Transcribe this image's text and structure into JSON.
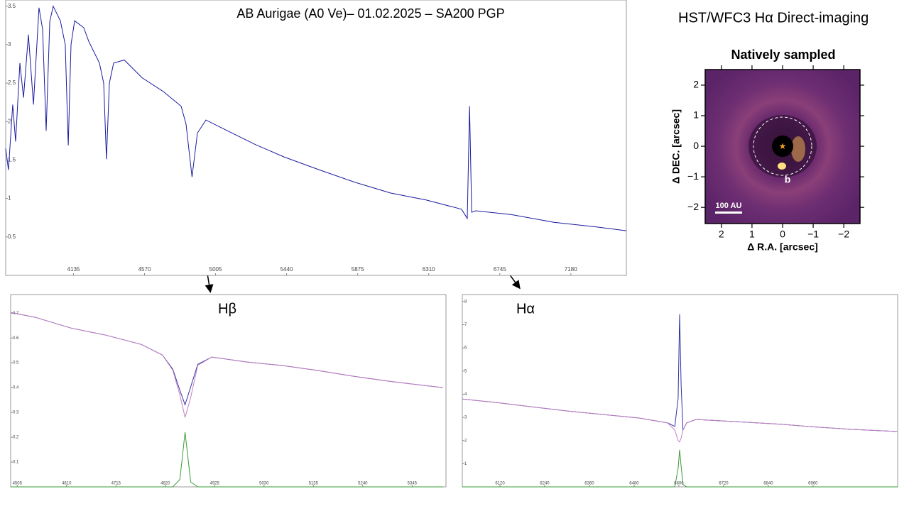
{
  "heading": "HST/WFC3 Hα Direct-imaging",
  "chart_data": [
    {
      "type": "line",
      "title": "AB Aurigae (A0 Ve)– 01.02.2025 – SA200 PGP",
      "x": [
        3720,
        3737,
        3763,
        3781,
        3807,
        3829,
        3859,
        3890,
        3924,
        3946,
        3968,
        3990,
        4011,
        4055,
        4085,
        4103,
        4120,
        4142,
        4198,
        4229,
        4294,
        4320,
        4337,
        4355,
        4381,
        4446,
        4555,
        4685,
        4794,
        4824,
        4861,
        4894,
        4946,
        5077,
        5250,
        5424,
        5642,
        5859,
        6077,
        6294,
        6511,
        6546,
        6560,
        6573,
        6598,
        6816,
        7077,
        7337,
        7520
      ],
      "series": [
        {
          "color": "#1a1aa0",
          "values": [
            1.65,
            1.37,
            2.22,
            1.74,
            2.76,
            2.31,
            3.13,
            2.22,
            3.48,
            3.2,
            1.88,
            3.3,
            3.5,
            3.31,
            3.0,
            1.69,
            3.0,
            3.31,
            3.22,
            3.04,
            2.76,
            2.5,
            1.51,
            2.5,
            2.76,
            2.8,
            2.57,
            2.39,
            2.2,
            1.97,
            1.28,
            1.85,
            2.02,
            1.88,
            1.7,
            1.54,
            1.37,
            1.21,
            1.07,
            0.98,
            0.86,
            0.74,
            2.2,
            0.82,
            0.84,
            0.79,
            0.69,
            0.63,
            0.58
          ]
        }
      ],
      "xlim": [
        3720,
        7520
      ],
      "ylim": [
        0,
        3.58
      ],
      "xticks": [
        4135,
        4570,
        5005,
        5440,
        5875,
        6310,
        6745,
        7180
      ],
      "yticks": [
        0.5,
        1,
        1.5,
        2,
        2.5,
        3,
        3.5
      ]
    },
    {
      "type": "line",
      "title": "Hβ",
      "x": [
        4491,
        4544,
        4619,
        4694,
        4769,
        4814,
        4836,
        4851,
        4862,
        4874,
        4889,
        4919,
        4994,
        5069,
        5144,
        5219,
        5294,
        5369,
        5411
      ],
      "series": [
        {
          "color": "#3030a0",
          "values": [
            0.703,
            0.683,
            0.64,
            0.611,
            0.574,
            0.531,
            0.474,
            0.389,
            0.331,
            0.403,
            0.494,
            0.523,
            0.503,
            0.489,
            0.469,
            0.446,
            0.426,
            0.409,
            0.4
          ]
        },
        {
          "color": "#c080c0",
          "values": [
            0.703,
            0.683,
            0.64,
            0.611,
            0.574,
            0.531,
            0.47,
            0.37,
            0.28,
            0.36,
            0.49,
            0.523,
            0.503,
            0.489,
            0.469,
            0.446,
            0.426,
            0.409,
            0.4
          ]
        },
        {
          "color": "#3a9a3a",
          "values": [
            0,
            0,
            0,
            0,
            0,
            0,
            0,
            0.03,
            0.22,
            0.02,
            0,
            0,
            0,
            0,
            0,
            0,
            0,
            0,
            0
          ]
        }
      ],
      "xlim": [
        4491,
        5417
      ],
      "ylim": [
        0,
        0.775
      ],
      "xticks": [
        4505,
        4610,
        4715,
        4820,
        4925,
        5030,
        5135,
        5240,
        5345
      ],
      "yticks": [
        0.1,
        0.2,
        0.3,
        0.4,
        0.5,
        0.6,
        0.7
      ]
    },
    {
      "type": "line",
      "title": "Hα",
      "x": [
        6019,
        6112,
        6208,
        6303,
        6398,
        6493,
        6570,
        6589,
        6598,
        6602,
        6606,
        6611,
        6621,
        6646,
        6779,
        6874,
        6970,
        7065,
        7187
      ],
      "series": [
        {
          "color": "#3030a0",
          "values": [
            3.79,
            3.64,
            3.45,
            3.27,
            3.12,
            2.97,
            2.76,
            2.61,
            3.82,
            7.45,
            4.42,
            2.45,
            2.76,
            2.91,
            2.79,
            2.7,
            2.58,
            2.48,
            2.39
          ]
        },
        {
          "color": "#c080c0",
          "values": [
            3.79,
            3.64,
            3.45,
            3.27,
            3.12,
            2.97,
            2.76,
            2.45,
            2.0,
            1.94,
            2.1,
            2.45,
            2.76,
            2.91,
            2.79,
            2.7,
            2.58,
            2.48,
            2.39
          ]
        },
        {
          "color": "#3a9a3a",
          "values": [
            0,
            0,
            0,
            0,
            0,
            0,
            0,
            0,
            0.8,
            1.6,
            0.9,
            0.1,
            0,
            0,
            0,
            0,
            0,
            0,
            0
          ]
        }
      ],
      "xlim": [
        6019,
        7187
      ],
      "ylim": [
        0,
        8.3
      ],
      "xticks": [
        6120,
        6240,
        6360,
        6480,
        6600,
        6720,
        6840,
        6960
      ],
      "yticks": [
        1,
        2,
        3,
        4,
        5,
        6,
        7,
        8
      ]
    },
    {
      "type": "image",
      "title": "Natively sampled",
      "xlabel": "Δ R.A. [arcsec]",
      "ylabel": "Δ DEC. [arcsec]",
      "annotations": [
        "b",
        "100 AU"
      ],
      "xlim": [
        2.53,
        -2.53
      ],
      "ylim": [
        -2.53,
        2.51
      ],
      "xticks": [
        2,
        1,
        0,
        {
          "value": -1,
          "label": "−1"
        },
        {
          "value": -2,
          "label": "−2"
        }
      ],
      "yticks": [
        {
          "value": -2,
          "label": "−2"
        },
        {
          "value": -1,
          "label": "−1"
        },
        0,
        1,
        2
      ]
    }
  ]
}
